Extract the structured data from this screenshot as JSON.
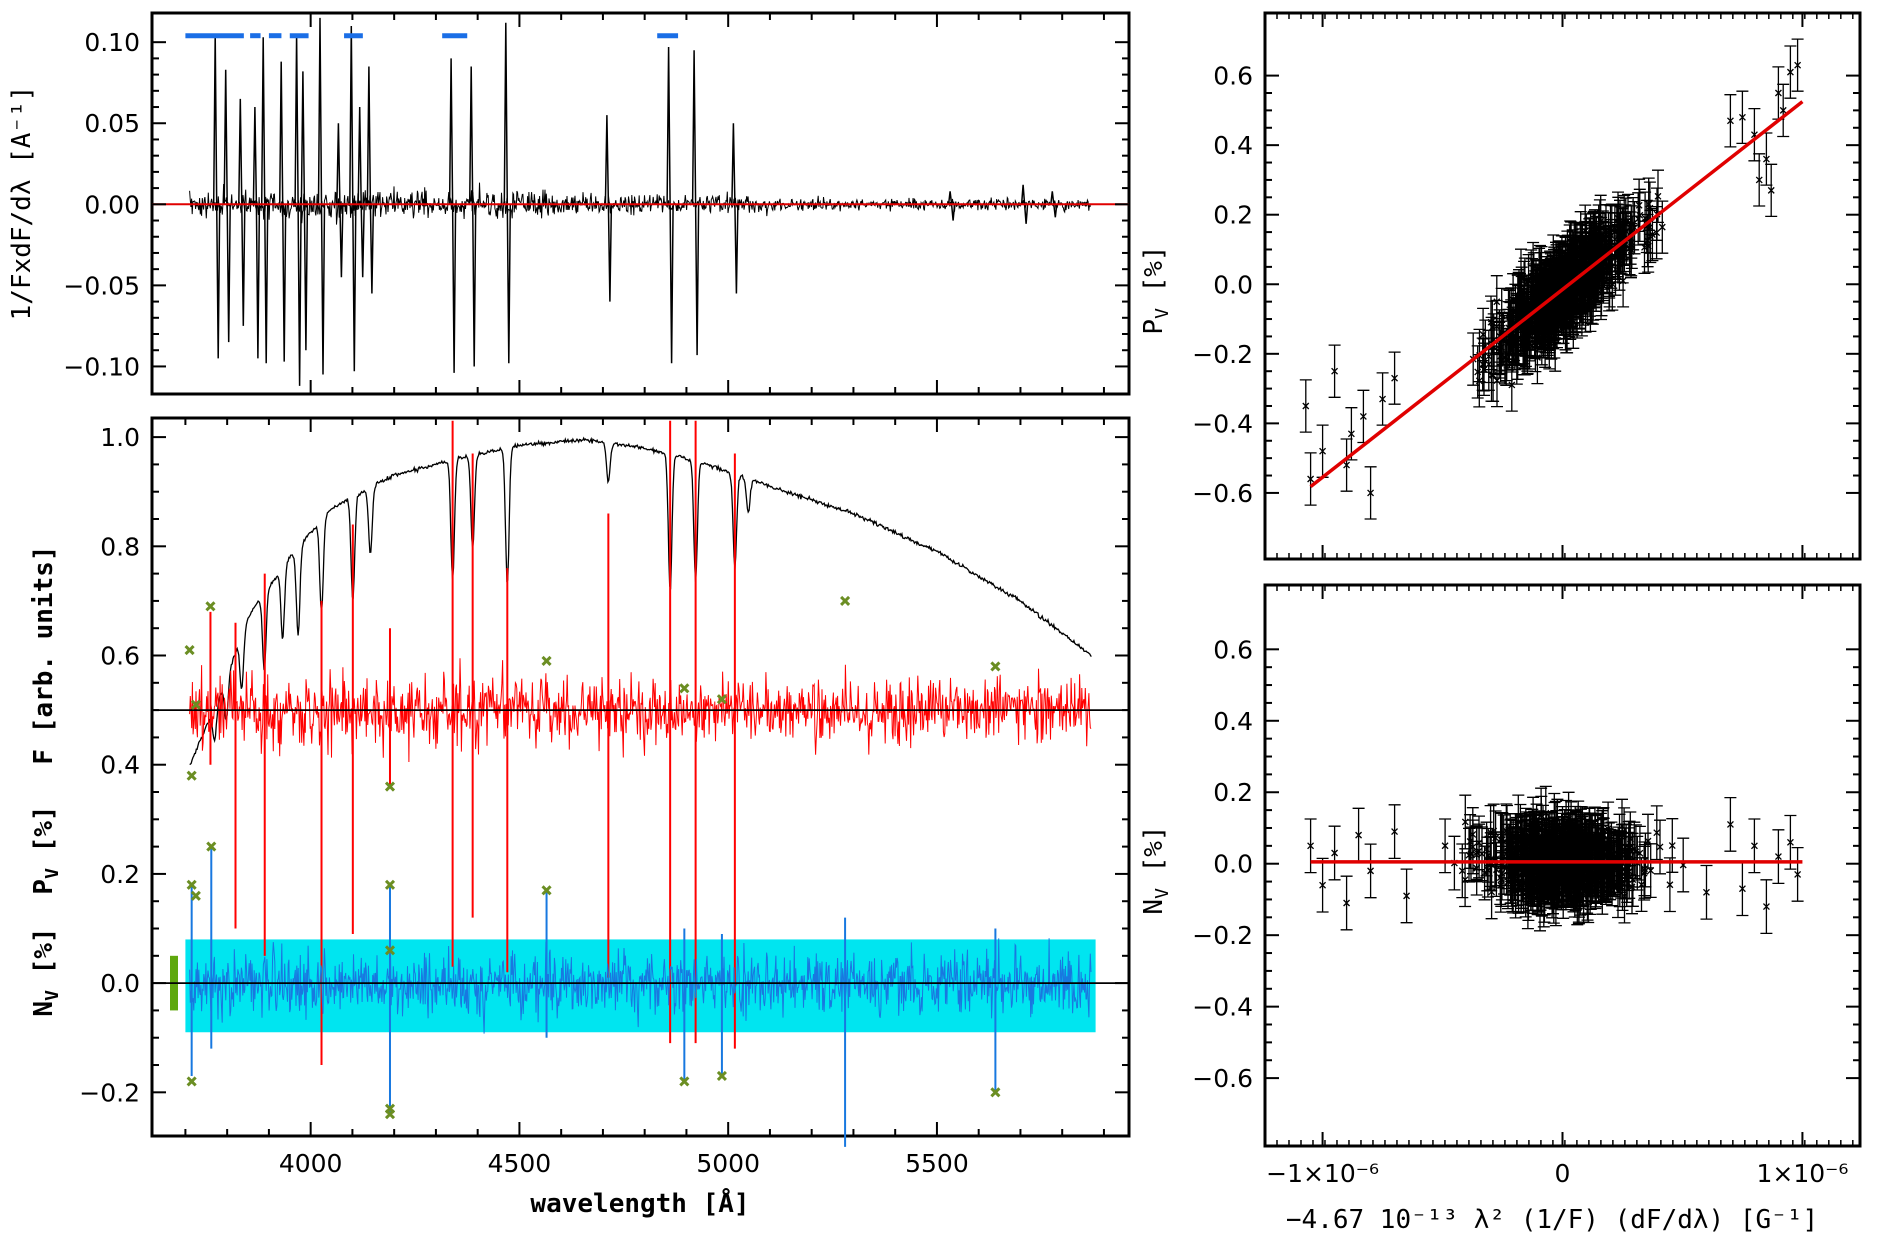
{
  "chart_data": [
    {
      "id": "derivative",
      "type": "line",
      "ylabel": "1/FxdF/dλ [A⁻¹]",
      "xlim": [
        3620,
        5960
      ],
      "ylim": [
        -0.117,
        0.118
      ],
      "yticks": [
        -0.1,
        -0.05,
        0.0,
        0.05,
        0.1
      ],
      "ytick_labels": [
        "−0.10",
        "−0.05",
        "0.00",
        "0.05",
        "0.10"
      ],
      "zero_line": 0.0,
      "line_marks": [
        {
          "x": 3775,
          "max": 0.105,
          "min": -0.095
        },
        {
          "x": 3800,
          "max": 0.083,
          "min": -0.085
        },
        {
          "x": 3835,
          "max": 0.065,
          "min": -0.075
        },
        {
          "x": 3870,
          "max": 0.06,
          "min": -0.095
        },
        {
          "x": 3890,
          "max": 0.103,
          "min": -0.098
        },
        {
          "x": 3933,
          "max": 0.088,
          "min": -0.097
        },
        {
          "x": 3970,
          "max": 0.105,
          "min": -0.112
        },
        {
          "x": 3985,
          "max": 0.082,
          "min": -0.09
        },
        {
          "x": 4026,
          "max": 0.115,
          "min": -0.105
        },
        {
          "x": 4070,
          "max": 0.05,
          "min": -0.045
        },
        {
          "x": 4101,
          "max": 0.11,
          "min": -0.103
        },
        {
          "x": 4121,
          "max": 0.06,
          "min": -0.045
        },
        {
          "x": 4143,
          "max": 0.085,
          "min": -0.055
        },
        {
          "x": 4340,
          "max": 0.09,
          "min": -0.104
        },
        {
          "x": 4388,
          "max": 0.085,
          "min": -0.1
        },
        {
          "x": 4471,
          "max": 0.112,
          "min": -0.098
        },
        {
          "x": 4713,
          "max": 0.055,
          "min": -0.06
        },
        {
          "x": 4861,
          "max": 0.097,
          "min": -0.098
        },
        {
          "x": 4922,
          "max": 0.095,
          "min": -0.093
        },
        {
          "x": 5016,
          "max": 0.05,
          "min": -0.055
        },
        {
          "x": 5535,
          "max": 0.008,
          "min": -0.01
        },
        {
          "x": 5710,
          "max": 0.012,
          "min": -0.012
        },
        {
          "x": 5780,
          "max": 0.008,
          "min": -0.008
        }
      ],
      "masked_regions": [
        [
          3700,
          3840
        ],
        [
          3855,
          3880
        ],
        [
          3900,
          3930
        ],
        [
          3950,
          3995
        ],
        [
          4080,
          4125
        ],
        [
          4315,
          4375
        ],
        [
          4830,
          4880
        ]
      ],
      "masked_level": 0.104
    },
    {
      "id": "spectrum",
      "type": "line",
      "xlabel": "wavelength [Å]",
      "ylabel_f": "F [arb. units]",
      "ylabel_p": "P",
      "ylabel_p_sub": "V",
      "ylabel_p_unit": " [%]",
      "ylabel_n": "N",
      "ylabel_n_sub": "V",
      "ylabel_n_unit": " [%]",
      "xlim": [
        3620,
        5960
      ],
      "ylim": [
        -0.28,
        1.035
      ],
      "xticks": [
        4000,
        4500,
        5000,
        5500
      ],
      "xtick_labels": [
        "4000",
        "4500",
        "5000",
        "5500"
      ],
      "yticks": [
        -0.2,
        0.0,
        0.2,
        0.4,
        0.6,
        0.8,
        1.0
      ],
      "ytick_labels": [
        "−0.2",
        "0.0",
        "0.2",
        "0.4",
        "0.6",
        "0.8",
        "1.0"
      ],
      "flux_continuum": [
        [
          3710,
          0.4
        ],
        [
          3780,
          0.52
        ],
        [
          3850,
          0.67
        ],
        [
          3950,
          0.78
        ],
        [
          4050,
          0.87
        ],
        [
          4200,
          0.93
        ],
        [
          4350,
          0.96
        ],
        [
          4500,
          0.985
        ],
        [
          4650,
          0.995
        ],
        [
          4800,
          0.98
        ],
        [
          4950,
          0.95
        ],
        [
          5100,
          0.91
        ],
        [
          5300,
          0.86
        ],
        [
          5500,
          0.79
        ],
        [
          5700,
          0.7
        ],
        [
          5870,
          0.6
        ]
      ],
      "flux_lines": [
        {
          "x": 3770,
          "depth": 0.06
        },
        {
          "x": 3798,
          "depth": 0.08
        },
        {
          "x": 3835,
          "depth": 0.1
        },
        {
          "x": 3889,
          "depth": 0.14
        },
        {
          "x": 3933,
          "depth": 0.13
        },
        {
          "x": 3970,
          "depth": 0.16
        },
        {
          "x": 4026,
          "depth": 0.17
        },
        {
          "x": 4101,
          "depth": 0.19
        },
        {
          "x": 4143,
          "depth": 0.12
        },
        {
          "x": 4340,
          "depth": 0.22
        },
        {
          "x": 4388,
          "depth": 0.17
        },
        {
          "x": 4471,
          "depth": 0.25
        },
        {
          "x": 4713,
          "depth": 0.07
        },
        {
          "x": 4861,
          "depth": 0.25
        },
        {
          "x": 4922,
          "depth": 0.22
        },
        {
          "x": 5016,
          "depth": 0.17
        },
        {
          "x": 5048,
          "depth": 0.06
        }
      ],
      "pv_offset": 0.5,
      "pv_spikes": [
        {
          "x": 3760,
          "hi": 0.68,
          "lo": 0.4
        },
        {
          "x": 3820,
          "hi": 0.66,
          "lo": 0.1
        },
        {
          "x": 3890,
          "hi": 0.75,
          "lo": 0.05
        },
        {
          "x": 4026,
          "hi": 0.7,
          "lo": -0.15
        },
        {
          "x": 4101,
          "hi": 0.84,
          "lo": 0.09
        },
        {
          "x": 4190,
          "hi": 0.65,
          "lo": 0.36
        },
        {
          "x": 4340,
          "hi": 1.03,
          "lo": 0.03
        },
        {
          "x": 4388,
          "hi": 0.97,
          "lo": 0.12
        },
        {
          "x": 4471,
          "hi": 0.76,
          "lo": 0.02
        },
        {
          "x": 4713,
          "hi": 0.86,
          "lo": 0.01
        },
        {
          "x": 4861,
          "hi": 1.03,
          "lo": -0.11
        },
        {
          "x": 4922,
          "hi": 1.03,
          "lo": -0.11
        },
        {
          "x": 5016,
          "hi": 0.97,
          "lo": -0.12
        }
      ],
      "pv_outliers": [
        [
          3710,
          0.61
        ],
        [
          3715,
          0.38
        ],
        [
          3725,
          0.51
        ],
        [
          3760,
          0.69
        ],
        [
          4190,
          0.36
        ],
        [
          4565,
          0.59
        ],
        [
          4895,
          0.54
        ],
        [
          4985,
          0.52
        ],
        [
          5280,
          0.7
        ],
        [
          5640,
          0.58
        ]
      ],
      "nv_spikes": [
        {
          "x": 3715,
          "hi": 0.18,
          "lo": -0.17
        },
        {
          "x": 3762,
          "hi": 0.25,
          "lo": -0.12
        },
        {
          "x": 4190,
          "hi": 0.18,
          "lo": -0.24
        },
        {
          "x": 4565,
          "hi": 0.17,
          "lo": -0.1
        },
        {
          "x": 4895,
          "hi": 0.1,
          "lo": -0.18
        },
        {
          "x": 4985,
          "hi": 0.09,
          "lo": -0.17
        },
        {
          "x": 5280,
          "hi": 0.12,
          "lo": -0.3
        },
        {
          "x": 5640,
          "hi": 0.1,
          "lo": -0.2
        }
      ],
      "nv_outliers": [
        [
          3715,
          0.18
        ],
        [
          3725,
          0.16
        ],
        [
          3762,
          0.25
        ],
        [
          3715,
          -0.18
        ],
        [
          4190,
          0.18
        ],
        [
          4190,
          0.06
        ],
        [
          4190,
          -0.23
        ],
        [
          4190,
          -0.24
        ],
        [
          4565,
          0.17
        ],
        [
          4895,
          -0.18
        ],
        [
          4985,
          -0.17
        ],
        [
          5640,
          -0.2
        ]
      ],
      "nv_band": {
        "x0": 3700,
        "x1": 5880,
        "lo": -0.09,
        "hi": 0.08
      }
    },
    {
      "id": "pv_regression",
      "type": "scatter",
      "ylabel": "P",
      "ylabel_sub": "V",
      "ylabel_unit": " [%]",
      "xlim": [
        -1.24e-06,
        1.24e-06
      ],
      "ylim": [
        -0.79,
        0.78
      ],
      "yticks": [
        -0.6,
        -0.4,
        -0.2,
        0.0,
        0.2,
        0.4,
        0.6
      ],
      "ytick_labels": [
        "−0.6",
        "−0.4",
        "−0.2",
        "0.0",
        "0.2",
        "0.4",
        "0.6"
      ],
      "fit": {
        "slope": 540000,
        "intercept": -0.015,
        "x": [
          -1.05e-06,
          1e-06
        ]
      },
      "error_bar": 0.075,
      "cluster_sd": 0.22,
      "scatter_noise": 0.07,
      "n_points": 620,
      "points": [
        [
          -1.07e-06,
          -0.35
        ],
        [
          -1.05e-06,
          -0.56
        ],
        [
          -1e-06,
          -0.48
        ],
        [
          -9.5e-07,
          -0.25
        ],
        [
          -9e-07,
          -0.52
        ],
        [
          -8.8e-07,
          -0.43
        ],
        [
          -8.3e-07,
          -0.38
        ],
        [
          -8e-07,
          -0.6
        ],
        [
          -7.5e-07,
          -0.33
        ],
        [
          -7e-07,
          -0.27
        ],
        [
          7.5e-07,
          0.48
        ],
        [
          8e-07,
          0.43
        ],
        [
          8.5e-07,
          0.36
        ],
        [
          9e-07,
          0.55
        ],
        [
          9.2e-07,
          0.5
        ],
        [
          9.5e-07,
          0.61
        ],
        [
          9.8e-07,
          0.63
        ],
        [
          8.7e-07,
          0.27
        ],
        [
          8.2e-07,
          0.3
        ],
        [
          7e-07,
          0.47
        ]
      ]
    },
    {
      "id": "nv_regression",
      "type": "scatter",
      "xlabel": "−4.67 10⁻¹³ λ² (1/F) (dF/dλ) [G⁻¹]",
      "ylabel": "N",
      "ylabel_sub": "V",
      "ylabel_unit": " [%]",
      "xlim": [
        -1.24e-06,
        1.24e-06
      ],
      "ylim": [
        -0.79,
        0.78
      ],
      "xticks": [
        -1e-06,
        0,
        1e-06
      ],
      "xtick_labels": [
        "−1×10⁻⁶",
        "0",
        "1×10⁻⁶"
      ],
      "yticks": [
        -0.6,
        -0.4,
        -0.2,
        0.0,
        0.2,
        0.4,
        0.6
      ],
      "ytick_labels": [
        "−0.6",
        "−0.4",
        "−0.2",
        "0.0",
        "0.2",
        "0.4",
        "0.6"
      ],
      "fit": {
        "slope": 0.0,
        "intercept": 0.005,
        "x": [
          -1.05e-06,
          1e-06
        ]
      },
      "error_bar": 0.075,
      "cluster_sd": 0.22,
      "scatter_noise": 0.065,
      "n_points": 620,
      "points": [
        [
          -1.05e-06,
          0.05
        ],
        [
          -1e-06,
          -0.06
        ],
        [
          -9.5e-07,
          0.03
        ],
        [
          -9e-07,
          -0.11
        ],
        [
          -8.5e-07,
          0.08
        ],
        [
          -8e-07,
          -0.02
        ],
        [
          -7e-07,
          0.09
        ],
        [
          -6.5e-07,
          -0.09
        ],
        [
          7e-07,
          0.11
        ],
        [
          7.5e-07,
          -0.07
        ],
        [
          8e-07,
          0.05
        ],
        [
          8.5e-07,
          -0.12
        ],
        [
          9e-07,
          0.02
        ],
        [
          9.5e-07,
          0.06
        ],
        [
          9.8e-07,
          -0.03
        ],
        [
          6e-07,
          -0.08
        ]
      ]
    }
  ]
}
